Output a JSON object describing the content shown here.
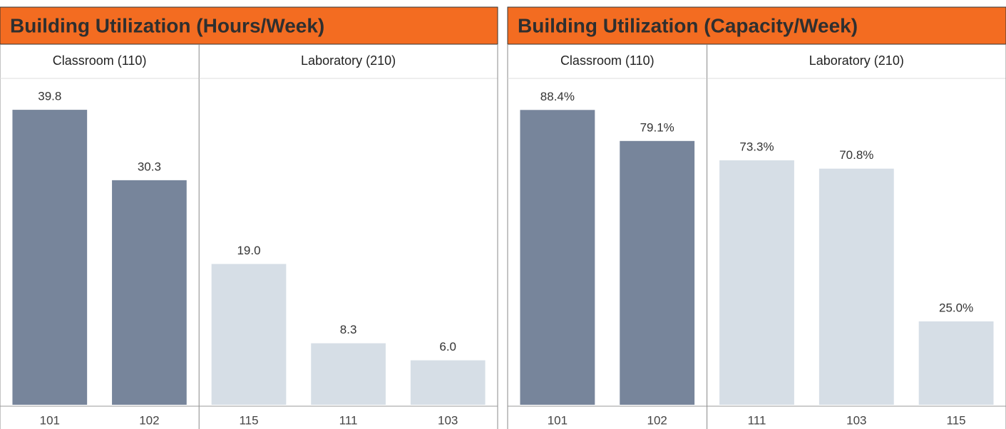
{
  "chart_data": [
    {
      "type": "bar",
      "title": "Building Utilization (Hours/Week)",
      "ylim": [
        0,
        45
      ],
      "series": [
        {
          "name": "Classroom (110)",
          "color": "#77859b",
          "categories": [
            "101",
            "102"
          ],
          "values": [
            39.8,
            30.3
          ],
          "value_labels": [
            "39.8",
            "30.3"
          ]
        },
        {
          "name": "Laboratory (210)",
          "color": "#d6dee6",
          "categories": [
            "115",
            "111",
            "103"
          ],
          "values": [
            19.0,
            8.3,
            6.0
          ],
          "value_labels": [
            "19.0",
            "8.3",
            "6.0"
          ]
        }
      ]
    },
    {
      "type": "bar",
      "title": "Building Utilization (Capacity/Week)",
      "ylim": [
        0,
        100
      ],
      "series": [
        {
          "name": "Classroom (110)",
          "color": "#77859b",
          "categories": [
            "101",
            "102"
          ],
          "values": [
            88.4,
            79.1
          ],
          "value_labels": [
            "88.4%",
            "79.1%"
          ]
        },
        {
          "name": "Laboratory (210)",
          "color": "#d6dee6",
          "categories": [
            "111",
            "103",
            "115"
          ],
          "values": [
            73.3,
            70.8,
            25.0
          ],
          "value_labels": [
            "73.3%",
            "70.8%",
            "25.0%"
          ]
        }
      ]
    }
  ]
}
